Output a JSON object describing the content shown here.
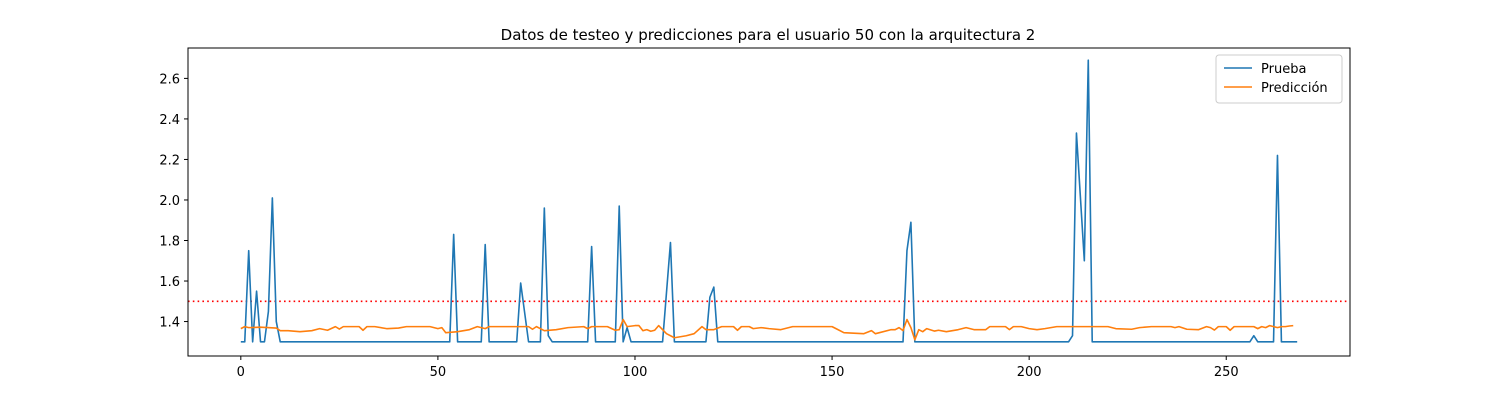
{
  "chart_data": {
    "type": "line",
    "title": "Datos de testeo y predicciones para el usuario 50 con la arquitectura 2",
    "xlabel": "",
    "ylabel": "",
    "xlim": [
      -13.4,
      281.4
    ],
    "ylim": [
      1.23,
      2.75
    ],
    "x_ticks": [
      0,
      50,
      100,
      150,
      200,
      250
    ],
    "y_ticks": [
      1.4,
      1.6,
      1.8,
      2.0,
      2.2,
      2.4,
      2.6
    ],
    "y_tick_labels": [
      "1.4",
      "1.6",
      "1.8",
      "2.0",
      "2.2",
      "2.4",
      "2.6"
    ],
    "grid": false,
    "legend_position": "top-right",
    "threshold": {
      "y": 1.5,
      "color": "#ff0000",
      "style": "dotted"
    },
    "series": [
      {
        "name": "Prueba",
        "color": "#1f77b4",
        "points": [
          [
            0,
            1.3
          ],
          [
            1,
            1.3
          ],
          [
            2,
            1.75
          ],
          [
            3,
            1.3
          ],
          [
            4,
            1.55
          ],
          [
            5,
            1.3
          ],
          [
            6,
            1.3
          ],
          [
            7,
            1.45
          ],
          [
            8,
            2.01
          ],
          [
            9,
            1.4
          ],
          [
            10,
            1.3
          ],
          [
            53,
            1.3
          ],
          [
            54,
            1.83
          ],
          [
            55,
            1.3
          ],
          [
            61,
            1.3
          ],
          [
            62,
            1.78
          ],
          [
            63,
            1.3
          ],
          [
            70,
            1.3
          ],
          [
            71,
            1.59
          ],
          [
            73,
            1.3
          ],
          [
            76,
            1.3
          ],
          [
            77,
            1.96
          ],
          [
            78,
            1.33
          ],
          [
            79,
            1.3
          ],
          [
            88,
            1.3
          ],
          [
            89,
            1.77
          ],
          [
            90,
            1.3
          ],
          [
            95,
            1.3
          ],
          [
            96,
            1.97
          ],
          [
            97,
            1.3
          ],
          [
            98,
            1.37
          ],
          [
            99,
            1.3
          ],
          [
            107,
            1.3
          ],
          [
            109,
            1.79
          ],
          [
            110,
            1.3
          ],
          [
            118,
            1.3
          ],
          [
            119,
            1.52
          ],
          [
            120,
            1.57
          ],
          [
            121,
            1.3
          ],
          [
            168,
            1.3
          ],
          [
            169,
            1.75
          ],
          [
            170,
            1.89
          ],
          [
            171,
            1.3
          ],
          [
            210,
            1.3
          ],
          [
            211,
            1.33
          ],
          [
            212,
            2.33
          ],
          [
            214,
            1.7
          ],
          [
            215,
            2.69
          ],
          [
            216,
            1.3
          ],
          [
            256,
            1.3
          ],
          [
            257,
            1.33
          ],
          [
            258,
            1.3
          ],
          [
            262,
            1.3
          ],
          [
            263,
            2.22
          ],
          [
            264,
            1.3
          ],
          [
            268,
            1.3
          ]
        ]
      },
      {
        "name": "Predicción",
        "color": "#ff7f0e",
        "points": [
          [
            0,
            1.365
          ],
          [
            1,
            1.375
          ],
          [
            2,
            1.37
          ],
          [
            5,
            1.372
          ],
          [
            9,
            1.368
          ],
          [
            10,
            1.355
          ],
          [
            12,
            1.355
          ],
          [
            15,
            1.35
          ],
          [
            18,
            1.355
          ],
          [
            20,
            1.365
          ],
          [
            22,
            1.357
          ],
          [
            24,
            1.375
          ],
          [
            25,
            1.363
          ],
          [
            26,
            1.375
          ],
          [
            30,
            1.375
          ],
          [
            31,
            1.357
          ],
          [
            32,
            1.375
          ],
          [
            34,
            1.375
          ],
          [
            37,
            1.365
          ],
          [
            40,
            1.368
          ],
          [
            42,
            1.375
          ],
          [
            48,
            1.375
          ],
          [
            50,
            1.365
          ],
          [
            51,
            1.37
          ],
          [
            52,
            1.345
          ],
          [
            55,
            1.35
          ],
          [
            58,
            1.36
          ],
          [
            60,
            1.375
          ],
          [
            62,
            1.365
          ],
          [
            63,
            1.375
          ],
          [
            73,
            1.375
          ],
          [
            74,
            1.362
          ],
          [
            75,
            1.375
          ],
          [
            77,
            1.355
          ],
          [
            80,
            1.36
          ],
          [
            83,
            1.37
          ],
          [
            87,
            1.375
          ],
          [
            88,
            1.365
          ],
          [
            89,
            1.375
          ],
          [
            93,
            1.375
          ],
          [
            95,
            1.357
          ],
          [
            96,
            1.36
          ],
          [
            97,
            1.41
          ],
          [
            98,
            1.375
          ],
          [
            100,
            1.38
          ],
          [
            101,
            1.38
          ],
          [
            102,
            1.355
          ],
          [
            103,
            1.36
          ],
          [
            104,
            1.352
          ],
          [
            105,
            1.357
          ],
          [
            106,
            1.38
          ],
          [
            108,
            1.34
          ],
          [
            110,
            1.32
          ],
          [
            113,
            1.33
          ],
          [
            115,
            1.34
          ],
          [
            117,
            1.375
          ],
          [
            118,
            1.36
          ],
          [
            120,
            1.36
          ],
          [
            122,
            1.375
          ],
          [
            125,
            1.375
          ],
          [
            126,
            1.357
          ],
          [
            127,
            1.375
          ],
          [
            129,
            1.375
          ],
          [
            130,
            1.365
          ],
          [
            132,
            1.37
          ],
          [
            134,
            1.365
          ],
          [
            137,
            1.36
          ],
          [
            140,
            1.375
          ],
          [
            150,
            1.375
          ],
          [
            151,
            1.365
          ],
          [
            153,
            1.345
          ],
          [
            158,
            1.34
          ],
          [
            160,
            1.355
          ],
          [
            161,
            1.34
          ],
          [
            162,
            1.345
          ],
          [
            165,
            1.36
          ],
          [
            166,
            1.36
          ],
          [
            167,
            1.37
          ],
          [
            168,
            1.355
          ],
          [
            169,
            1.41
          ],
          [
            170,
            1.37
          ],
          [
            171,
            1.31
          ],
          [
            172,
            1.36
          ],
          [
            173,
            1.35
          ],
          [
            174,
            1.365
          ],
          [
            176,
            1.353
          ],
          [
            177,
            1.357
          ],
          [
            179,
            1.35
          ],
          [
            182,
            1.36
          ],
          [
            184,
            1.37
          ],
          [
            186,
            1.36
          ],
          [
            189,
            1.36
          ],
          [
            190,
            1.375
          ],
          [
            194,
            1.375
          ],
          [
            195,
            1.36
          ],
          [
            196,
            1.375
          ],
          [
            198,
            1.375
          ],
          [
            200,
            1.365
          ],
          [
            202,
            1.36
          ],
          [
            204,
            1.365
          ],
          [
            207,
            1.375
          ],
          [
            220,
            1.375
          ],
          [
            222,
            1.365
          ],
          [
            226,
            1.362
          ],
          [
            228,
            1.37
          ],
          [
            231,
            1.375
          ],
          [
            236,
            1.375
          ],
          [
            237,
            1.37
          ],
          [
            238,
            1.375
          ],
          [
            240,
            1.362
          ],
          [
            243,
            1.36
          ],
          [
            245,
            1.375
          ],
          [
            246,
            1.37
          ],
          [
            247,
            1.358
          ],
          [
            248,
            1.375
          ],
          [
            250,
            1.375
          ],
          [
            251,
            1.357
          ],
          [
            252,
            1.375
          ],
          [
            257,
            1.375
          ],
          [
            258,
            1.365
          ],
          [
            259,
            1.375
          ],
          [
            260,
            1.37
          ],
          [
            261,
            1.38
          ],
          [
            263,
            1.37
          ],
          [
            264,
            1.375
          ],
          [
            265,
            1.375
          ],
          [
            266,
            1.378
          ],
          [
            267,
            1.38
          ]
        ]
      }
    ]
  }
}
